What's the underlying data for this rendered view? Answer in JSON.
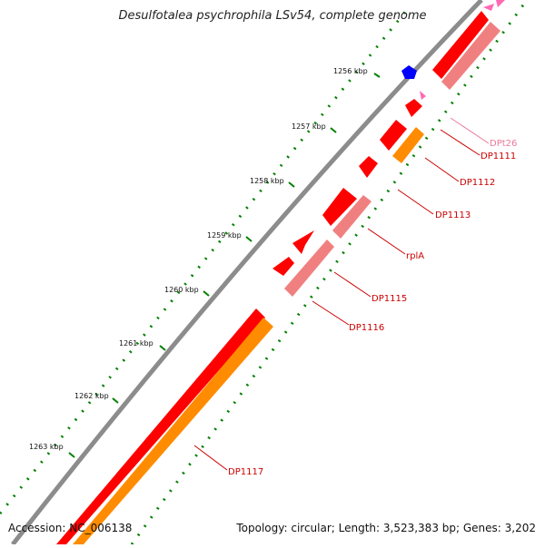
{
  "title": "Desulfotalea psychrophila LSv54, complete genome",
  "footer": {
    "accession": "Accession: NC_006138",
    "summary": "Topology: circular; Length: 3,523,383 bp; Genes: 3,202"
  },
  "colors": {
    "backbone": "#8c8c8c",
    "tick": "#008000",
    "cds_forward": "#ff0000",
    "cds_reverse": "#f08080",
    "orange_track": "#ff8c00",
    "trna": "#ff69b4",
    "marker_blue": "#0000ff",
    "label_red": "#cc0000",
    "label_pink": "#e87a9a"
  },
  "scale_labels": [
    "1256 kbp",
    "1257 kbp",
    "1258 kbp",
    "1259 kbp",
    "1260 kbp",
    "1261 kbp",
    "1262 kbp",
    "1263 kbp"
  ],
  "feature_labels": [
    "DPt26",
    "DP1111",
    "DP1112",
    "DP1113",
    "rplA",
    "DP1115",
    "DP1116",
    "DP1117"
  ]
}
